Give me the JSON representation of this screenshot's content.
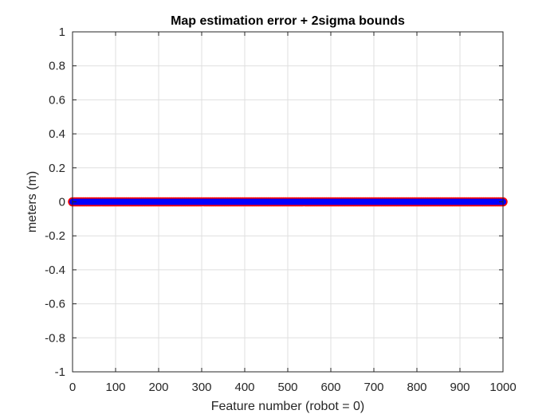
{
  "chart_data": {
    "type": "scatter",
    "title": "Map estimation error + 2sigma bounds",
    "xlabel": "Feature number (robot = 0)",
    "ylabel": "meters (m)",
    "xlim": [
      0,
      1000
    ],
    "ylim": [
      -1,
      1
    ],
    "xticks": [
      0,
      100,
      200,
      300,
      400,
      500,
      600,
      700,
      800,
      900,
      1000
    ],
    "yticks": [
      1,
      0.8,
      0.6,
      0.4,
      0.2,
      0,
      -0.2,
      -0.4,
      -0.6,
      -0.8,
      -1
    ],
    "xtick_labels": [
      "0",
      "100",
      "200",
      "300",
      "400",
      "500",
      "600",
      "700",
      "800",
      "900",
      "1000"
    ],
    "ytick_labels": [
      "1",
      "0.8",
      "0.6",
      "0.4",
      "0.2",
      "0",
      "-0.2",
      "-0.4",
      "-0.6",
      "-0.8",
      "-1"
    ],
    "grid": true,
    "series": [
      {
        "color": "#ff0000",
        "marker": "circle",
        "x_range": [
          0,
          1000
        ],
        "y": 0
      },
      {
        "color": "#0000ff",
        "marker": "circle",
        "x_range": [
          0,
          1000
        ],
        "y": 0
      }
    ]
  }
}
